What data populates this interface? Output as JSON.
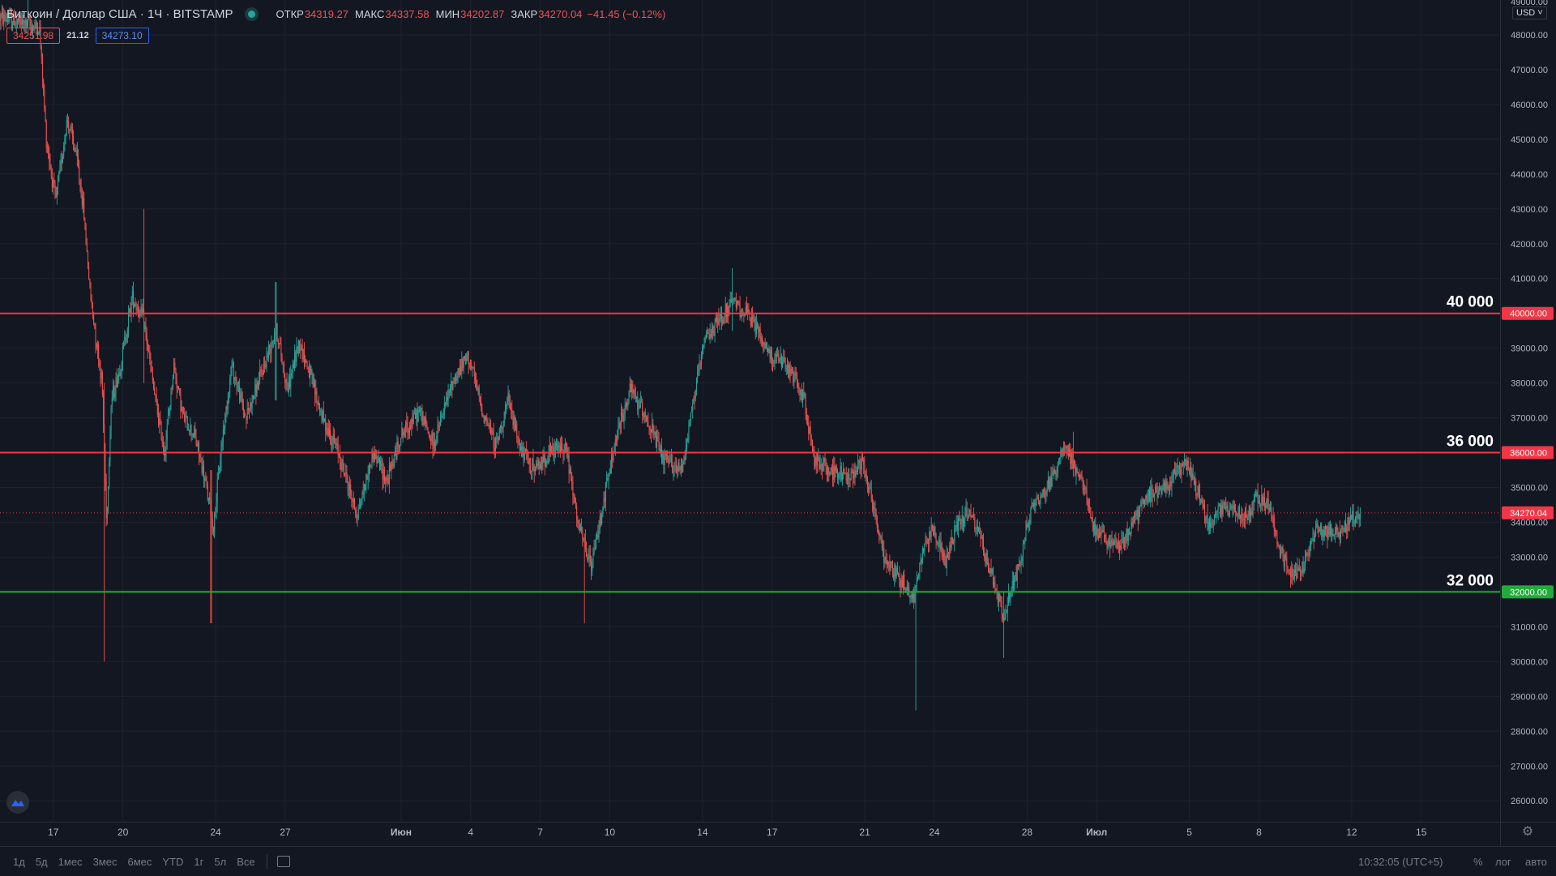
{
  "header": {
    "symbol": "Биткоин / Доллар США · 1Ч · BITSTAMP",
    "ohlc": [
      {
        "label": "ОТКР",
        "value": "34319.27"
      },
      {
        "label": "МАКС",
        "value": "34337.58"
      },
      {
        "label": "МИН",
        "value": "34202.87"
      },
      {
        "label": "ЗАКР",
        "value": "34270.04"
      }
    ],
    "change": "−41.45 (−0.12%)",
    "bid": "34251.98",
    "spread": "21.12",
    "ask": "34273.10",
    "currency": "USD",
    "top_partial_tick": "49000.00"
  },
  "chart_data": {
    "type": "candlestick",
    "title": "Биткоин / Доллар США · 1Ч · BITSTAMP",
    "y_ticks": [
      26000,
      27000,
      28000,
      29000,
      30000,
      31000,
      32000,
      33000,
      34000,
      35000,
      36000,
      37000,
      38000,
      39000,
      40000,
      41000,
      42000,
      43000,
      44000,
      45000,
      46000,
      47000,
      48000
    ],
    "ylim": [
      25400,
      49000
    ],
    "x_ticks": [
      {
        "day": -2,
        "label": "17"
      },
      {
        "day": 1,
        "label": "20"
      },
      {
        "day": 5,
        "label": "24"
      },
      {
        "day": 8,
        "label": "27"
      },
      {
        "day": 13,
        "label": "Июн"
      },
      {
        "day": 16,
        "label": "4"
      },
      {
        "day": 19,
        "label": "7"
      },
      {
        "day": 22,
        "label": "10"
      },
      {
        "day": 26,
        "label": "14"
      },
      {
        "day": 29,
        "label": "17"
      },
      {
        "day": 33,
        "label": "21"
      },
      {
        "day": 36,
        "label": "24"
      },
      {
        "day": 40,
        "label": "28"
      },
      {
        "day": 43,
        "label": "Июл"
      },
      {
        "day": 47,
        "label": "5"
      },
      {
        "day": 50,
        "label": "8"
      },
      {
        "day": 54,
        "label": "12"
      },
      {
        "day": 57,
        "label": "15"
      }
    ],
    "xlim_days": [
      -4.3,
      60.4
    ],
    "last_day": 54.4,
    "path_nodes": [
      [
        -4.3,
        48500
      ],
      [
        -2.6,
        48200
      ],
      [
        -2.3,
        45000
      ],
      [
        -1.9,
        43200
      ],
      [
        -1.4,
        45600
      ],
      [
        -1,
        44500
      ],
      [
        -0.7,
        43000
      ],
      [
        -0.4,
        40500
      ],
      [
        0.1,
        38000
      ],
      [
        0.3,
        34000
      ],
      [
        0.5,
        37500
      ],
      [
        0.9,
        38500
      ],
      [
        1.4,
        40500
      ],
      [
        1.9,
        39800
      ],
      [
        2.4,
        37500
      ],
      [
        2.8,
        36000
      ],
      [
        3.2,
        38500
      ],
      [
        3.6,
        37000
      ],
      [
        4.1,
        36500
      ],
      [
        4.6,
        35000
      ],
      [
        4.9,
        33800
      ],
      [
        5.3,
        36500
      ],
      [
        5.7,
        38500
      ],
      [
        6.3,
        37000
      ],
      [
        7.0,
        38300
      ],
      [
        7.6,
        39600
      ],
      [
        8.1,
        37800
      ],
      [
        8.6,
        39200
      ],
      [
        9.0,
        38400
      ],
      [
        9.6,
        37000
      ],
      [
        10.3,
        36000
      ],
      [
        11.1,
        34200
      ],
      [
        11.8,
        36000
      ],
      [
        12.4,
        35200
      ],
      [
        13.0,
        36500
      ],
      [
        13.8,
        37200
      ],
      [
        14.4,
        36200
      ],
      [
        15.2,
        38000
      ],
      [
        15.9,
        38800
      ],
      [
        16.5,
        37200
      ],
      [
        17.1,
        36200
      ],
      [
        17.6,
        37500
      ],
      [
        18.2,
        36000
      ],
      [
        18.8,
        35500
      ],
      [
        19.4,
        36000
      ],
      [
        20.1,
        36200
      ],
      [
        20.6,
        34000
      ],
      [
        21.2,
        32700
      ],
      [
        21.7,
        34500
      ],
      [
        22.3,
        36500
      ],
      [
        22.9,
        37800
      ],
      [
        23.6,
        37000
      ],
      [
        24.3,
        35800
      ],
      [
        25.1,
        35500
      ],
      [
        25.6,
        37500
      ],
      [
        26.1,
        39200
      ],
      [
        26.7,
        39800
      ],
      [
        27.3,
        40300
      ],
      [
        27.9,
        40000
      ],
      [
        28.3,
        39600
      ],
      [
        28.9,
        38800
      ],
      [
        29.4,
        38600
      ],
      [
        29.9,
        38200
      ],
      [
        30.4,
        37500
      ],
      [
        30.8,
        35800
      ],
      [
        31.5,
        35500
      ],
      [
        32.3,
        35300
      ],
      [
        32.9,
        35800
      ],
      [
        33.4,
        34400
      ],
      [
        33.8,
        33000
      ],
      [
        34.4,
        32500
      ],
      [
        35.1,
        31800
      ],
      [
        35.6,
        33500
      ],
      [
        36.0,
        33800
      ],
      [
        36.5,
        32800
      ],
      [
        37.0,
        34000
      ],
      [
        37.5,
        34300
      ],
      [
        38.0,
        33500
      ],
      [
        38.5,
        32400
      ],
      [
        39.0,
        31200
      ],
      [
        39.5,
        32500
      ],
      [
        39.8,
        33200
      ],
      [
        40.2,
        34500
      ],
      [
        40.7,
        34800
      ],
      [
        41.2,
        35400
      ],
      [
        41.6,
        36300
      ],
      [
        42.0,
        35600
      ],
      [
        42.4,
        35100
      ],
      [
        42.9,
        33800
      ],
      [
        43.4,
        33500
      ],
      [
        43.9,
        33300
      ],
      [
        44.3,
        33600
      ],
      [
        44.8,
        34300
      ],
      [
        45.3,
        34800
      ],
      [
        45.8,
        35000
      ],
      [
        46.3,
        35300
      ],
      [
        46.9,
        35700
      ],
      [
        47.4,
        34800
      ],
      [
        47.8,
        33900
      ],
      [
        48.3,
        34400
      ],
      [
        48.8,
        34400
      ],
      [
        49.4,
        34100
      ],
      [
        49.9,
        34700
      ],
      [
        50.4,
        34500
      ],
      [
        50.9,
        33200
      ],
      [
        51.4,
        32500
      ],
      [
        51.9,
        32700
      ],
      [
        52.4,
        33700
      ],
      [
        52.9,
        33800
      ],
      [
        53.4,
        33700
      ],
      [
        53.9,
        34000
      ],
      [
        54.4,
        34270
      ]
    ],
    "wick_extremes": [
      {
        "day": -3.1,
        "low": 48000,
        "high": 49000
      },
      {
        "day": 0.2,
        "low": 30000,
        "high": 38000
      },
      {
        "day": 4.8,
        "low": 31100,
        "high": 35500
      },
      {
        "day": 1.9,
        "low": 38000,
        "high": 43000
      },
      {
        "day": 7.6,
        "low": 37500,
        "high": 40900
      },
      {
        "day": 20.9,
        "low": 31100,
        "high": 33500
      },
      {
        "day": 27.3,
        "low": 39500,
        "high": 41300
      },
      {
        "day": 35.2,
        "low": 28600,
        "high": 31500
      },
      {
        "day": 39.0,
        "low": 30100,
        "high": 32000
      },
      {
        "day": 42.0,
        "low": 35500,
        "high": 36600
      }
    ],
    "levels": [
      {
        "price": 40000,
        "label": "40 000",
        "axis_label": "40000.00",
        "color": "#f23645"
      },
      {
        "price": 36000,
        "label": "36 000",
        "axis_label": "36000.00",
        "color": "#f23645"
      },
      {
        "price": 32000,
        "label": "32 000",
        "axis_label": "32000.00",
        "color": "#22ab3a"
      }
    ],
    "last_price": {
      "price": 34270.04,
      "axis_label": "34270.04",
      "color": "#f23645"
    },
    "up_color": "#26a69a",
    "down_color": "#ef5350",
    "grid": true
  },
  "bottom_bar": {
    "ranges": [
      "1д",
      "5д",
      "1мес",
      "3мес",
      "6мес",
      "YTD",
      "1г",
      "5л",
      "Все"
    ],
    "time": "10:32:05 (UTC+5)",
    "percent": "%",
    "log": "лог",
    "auto": "авто"
  },
  "icons": {
    "calendar": "calendar-icon",
    "gear": "gear-icon",
    "logo": "logo-icon"
  }
}
